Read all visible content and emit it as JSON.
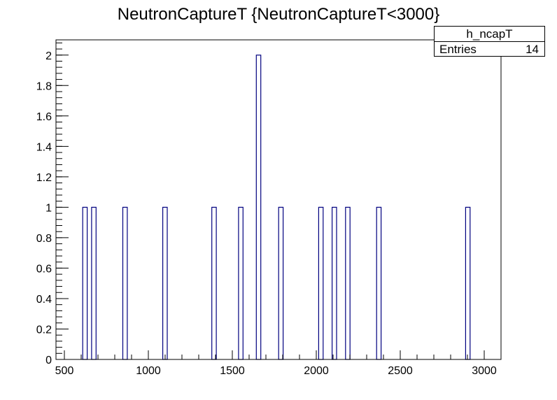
{
  "chart_data": {
    "type": "bar",
    "title": "NeutronCaptureT {NeutronCaptureT<3000}",
    "xlabel": "",
    "ylabel": "",
    "xlim": [
      450,
      3100
    ],
    "ylim": [
      0,
      2.1
    ],
    "x_ticks": [
      500,
      1000,
      1500,
      2000,
      2500,
      3000
    ],
    "x_tick_labels": [
      "500",
      "1000",
      "1500",
      "2000",
      "2500",
      "3000"
    ],
    "y_ticks": [
      0,
      0.2,
      0.4,
      0.6,
      0.8,
      1,
      1.2,
      1.4,
      1.6,
      1.8,
      2
    ],
    "y_tick_labels": [
      "0",
      "0.2",
      "0.4",
      "0.6",
      "0.8",
      "1",
      "1.2",
      "1.4",
      "1.6",
      "1.8",
      "2"
    ],
    "bin_width": 26.5,
    "bins": [
      {
        "x_low": 609,
        "value": 1
      },
      {
        "x_low": 662,
        "value": 1
      },
      {
        "x_low": 848,
        "value": 1
      },
      {
        "x_low": 1086,
        "value": 1
      },
      {
        "x_low": 1378,
        "value": 1
      },
      {
        "x_low": 1537,
        "value": 1
      },
      {
        "x_low": 1643,
        "value": 2
      },
      {
        "x_low": 1776,
        "value": 1
      },
      {
        "x_low": 2014,
        "value": 1
      },
      {
        "x_low": 2094,
        "value": 1
      },
      {
        "x_low": 2174,
        "value": 1
      },
      {
        "x_low": 2359,
        "value": 1
      },
      {
        "x_low": 2889,
        "value": 1
      }
    ],
    "grid": false,
    "line_color": "#00007f",
    "legend": {
      "placement": "top-right",
      "name": "h_ncapT",
      "entries_label": "Entries",
      "entries_value": "14"
    }
  }
}
